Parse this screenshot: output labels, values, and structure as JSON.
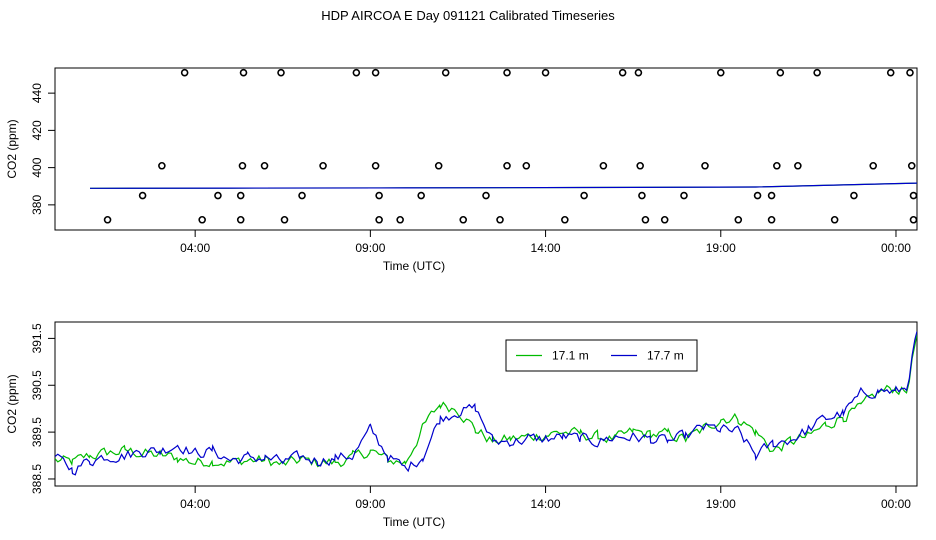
{
  "title": "HDP AIRCOA E  Day 091121  Calibrated Timeseries",
  "chart_data": [
    {
      "type": "scatter",
      "title": "HDP AIRCOA E  Day 091121  Calibrated Timeseries",
      "xlabel": "Time (UTC)",
      "ylabel": "CO2 (ppm)",
      "x_unit": "hours UTC",
      "xlim": [
        0.0,
        24.6
      ],
      "ylim": [
        366.5,
        453.5
      ],
      "xticks": [
        {
          "value": 4,
          "label": "04:00"
        },
        {
          "value": 9,
          "label": "09:00"
        },
        {
          "value": 14,
          "label": "14:00"
        },
        {
          "value": 19,
          "label": "19:00"
        },
        {
          "value": 24,
          "label": "00:00"
        }
      ],
      "yticks": [
        380,
        400,
        420,
        440
      ],
      "calibration_points": [
        [
          1.5,
          372
        ],
        [
          2.5,
          385
        ],
        [
          3.05,
          401
        ],
        [
          3.7,
          451
        ],
        [
          4.2,
          372
        ],
        [
          4.65,
          385
        ],
        [
          5.3,
          372
        ],
        [
          5.3,
          385
        ],
        [
          5.35,
          401
        ],
        [
          5.38,
          451
        ],
        [
          5.98,
          401
        ],
        [
          6.45,
          451
        ],
        [
          6.55,
          372
        ],
        [
          7.05,
          385
        ],
        [
          7.65,
          401
        ],
        [
          8.6,
          451
        ],
        [
          9.15,
          451
        ],
        [
          9.15,
          401
        ],
        [
          9.25,
          385
        ],
        [
          9.25,
          372
        ],
        [
          9.85,
          372
        ],
        [
          10.45,
          385
        ],
        [
          10.95,
          401
        ],
        [
          11.15,
          451
        ],
        [
          11.65,
          372
        ],
        [
          12.3,
          385
        ],
        [
          12.7,
          372
        ],
        [
          12.9,
          401
        ],
        [
          12.9,
          451
        ],
        [
          13.45,
          401
        ],
        [
          14.0,
          451
        ],
        [
          14.55,
          372
        ],
        [
          15.1,
          385
        ],
        [
          15.65,
          401
        ],
        [
          16.2,
          451
        ],
        [
          16.65,
          451
        ],
        [
          16.7,
          401
        ],
        [
          16.75,
          385
        ],
        [
          16.85,
          372
        ],
        [
          17.4,
          372
        ],
        [
          17.95,
          385
        ],
        [
          18.55,
          401
        ],
        [
          19.0,
          451
        ],
        [
          19.5,
          372
        ],
        [
          20.05,
          385
        ],
        [
          20.45,
          385
        ],
        [
          20.45,
          372
        ],
        [
          20.6,
          401
        ],
        [
          20.7,
          451
        ],
        [
          21.2,
          401
        ],
        [
          21.75,
          451
        ],
        [
          22.25,
          372
        ],
        [
          22.8,
          385
        ],
        [
          23.35,
          401
        ],
        [
          23.85,
          451
        ],
        [
          24.4,
          451
        ],
        [
          24.45,
          401
        ],
        [
          24.5,
          385
        ],
        [
          24.5,
          372
        ]
      ],
      "series": [
        {
          "name": "17.1 m",
          "color": "#00bb00",
          "x": [
            1.0,
            5.0,
            10.0,
            15.0,
            20.0,
            24.6
          ],
          "y": [
            388.9,
            389.0,
            389.1,
            389.3,
            389.6,
            391.7
          ]
        },
        {
          "name": "17.7 m",
          "color": "#0000cc",
          "x": [
            1.0,
            5.0,
            10.0,
            15.0,
            20.0,
            24.6
          ],
          "y": [
            388.9,
            389.0,
            389.1,
            389.3,
            389.6,
            391.7
          ]
        }
      ]
    },
    {
      "type": "line",
      "xlabel": "Time (UTC)",
      "ylabel": "CO2 (ppm)",
      "x_unit": "hours UTC",
      "xlim": [
        0.0,
        24.6
      ],
      "ylim": [
        388.35,
        391.85
      ],
      "xticks": [
        {
          "value": 4,
          "label": "04:00"
        },
        {
          "value": 9,
          "label": "09:00"
        },
        {
          "value": 14,
          "label": "14:00"
        },
        {
          "value": 19,
          "label": "19:00"
        },
        {
          "value": 24,
          "label": "00:00"
        }
      ],
      "yticks": [
        {
          "value": 388.5,
          "label": "388.5"
        },
        {
          "value": 389.5,
          "label": "389.5"
        },
        {
          "value": 390.5,
          "label": "390.5"
        },
        {
          "value": 391.5,
          "label": "391.5"
        }
      ],
      "legend_position": "top-right",
      "series": [
        {
          "name": "17.1 m",
          "color": "#00bb00",
          "x": [
            0.0,
            0.5,
            1.0,
            1.5,
            2.0,
            2.5,
            3.0,
            3.5,
            4.0,
            4.5,
            5.0,
            5.5,
            6.0,
            6.5,
            7.0,
            7.5,
            8.0,
            8.5,
            9.0,
            9.5,
            10.0,
            10.5,
            11.0,
            11.5,
            12.0,
            12.5,
            13.0,
            13.5,
            14.0,
            14.5,
            15.0,
            15.5,
            16.0,
            16.5,
            17.0,
            17.5,
            18.0,
            18.5,
            19.0,
            19.5,
            20.0,
            20.5,
            21.0,
            21.5,
            22.0,
            22.5,
            23.0,
            23.5,
            24.0,
            24.3,
            24.6
          ],
          "y": [
            388.9,
            388.85,
            389.0,
            389.05,
            389.1,
            389.05,
            389.0,
            388.95,
            388.85,
            388.9,
            388.85,
            388.9,
            388.9,
            388.8,
            388.9,
            388.85,
            388.85,
            388.95,
            389.1,
            388.9,
            388.85,
            389.6,
            390.1,
            390.0,
            389.55,
            389.3,
            389.35,
            389.4,
            389.45,
            389.5,
            389.45,
            389.4,
            389.35,
            389.5,
            389.45,
            389.45,
            389.35,
            389.55,
            389.8,
            389.8,
            389.5,
            389.1,
            389.3,
            389.4,
            389.65,
            389.85,
            390.0,
            390.35,
            390.45,
            390.35,
            391.6
          ]
        },
        {
          "name": "17.7 m",
          "color": "#0000cc",
          "x": [
            0.0,
            0.5,
            1.0,
            1.5,
            2.0,
            2.5,
            3.0,
            3.5,
            4.0,
            4.5,
            5.0,
            5.5,
            6.0,
            6.5,
            7.0,
            7.5,
            8.0,
            8.5,
            9.0,
            9.5,
            10.0,
            10.5,
            11.0,
            11.5,
            12.0,
            12.5,
            13.0,
            13.5,
            14.0,
            14.5,
            15.0,
            15.5,
            16.0,
            16.5,
            17.0,
            17.5,
            18.0,
            18.5,
            19.0,
            19.5,
            20.0,
            20.5,
            21.0,
            21.5,
            22.0,
            22.5,
            23.0,
            23.5,
            24.0,
            24.3,
            24.6
          ],
          "y": [
            388.95,
            388.7,
            388.9,
            389.0,
            389.0,
            389.1,
            389.1,
            389.25,
            389.05,
            389.1,
            388.9,
            388.95,
            388.95,
            388.85,
            388.95,
            388.9,
            388.95,
            389.0,
            389.55,
            389.0,
            388.7,
            389.0,
            389.8,
            389.95,
            390.0,
            389.3,
            389.3,
            389.35,
            389.35,
            389.4,
            389.35,
            389.3,
            389.4,
            389.4,
            389.35,
            389.3,
            389.4,
            389.6,
            389.55,
            389.5,
            389.0,
            389.25,
            389.35,
            389.55,
            389.8,
            389.9,
            390.3,
            390.4,
            390.35,
            390.45,
            391.65
          ]
        }
      ]
    }
  ]
}
